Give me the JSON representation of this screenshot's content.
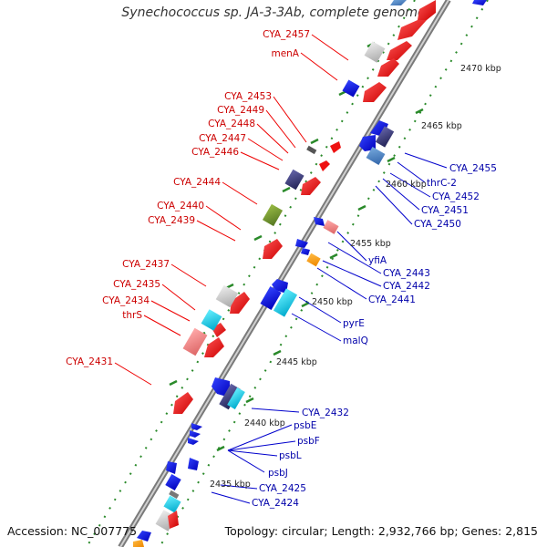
{
  "title": "Synechococcus sp. JA-3-3Ab, complete genome",
  "footer": {
    "accession": "Accession: NC_007775",
    "summary": "Topology: circular; Length: 2,932,766 bp; Genes: 2,815"
  },
  "ticks": [
    {
      "label": "2470 kbp"
    },
    {
      "label": "2465 kbp"
    },
    {
      "label": "2460 kbp"
    },
    {
      "label": "2455 kbp"
    },
    {
      "label": "2450 kbp"
    },
    {
      "label": "2445 kbp"
    },
    {
      "label": "2440 kbp"
    },
    {
      "label": "2435 kbp"
    }
  ],
  "genes_forward": [
    {
      "name": "CYA_2457"
    },
    {
      "name": "menA"
    },
    {
      "name": "CYA_2453"
    },
    {
      "name": "CYA_2449"
    },
    {
      "name": "CYA_2448"
    },
    {
      "name": "CYA_2447"
    },
    {
      "name": "CYA_2446"
    },
    {
      "name": "CYA_2444"
    },
    {
      "name": "CYA_2440"
    },
    {
      "name": "CYA_2439"
    },
    {
      "name": "CYA_2437"
    },
    {
      "name": "CYA_2435"
    },
    {
      "name": "CYA_2434"
    },
    {
      "name": "thrS"
    },
    {
      "name": "CYA_2431"
    }
  ],
  "genes_reverse": [
    {
      "name": "CYA_2455"
    },
    {
      "name": "thrC-2"
    },
    {
      "name": "CYA_2452"
    },
    {
      "name": "CYA_2451"
    },
    {
      "name": "CYA_2450"
    },
    {
      "name": "yfiA"
    },
    {
      "name": "CYA_2443"
    },
    {
      "name": "CYA_2442"
    },
    {
      "name": "CYA_2441"
    },
    {
      "name": "pyrE"
    },
    {
      "name": "malQ"
    },
    {
      "name": "CYA_2432"
    },
    {
      "name": "psbE"
    },
    {
      "name": "psbF"
    },
    {
      "name": "psbL"
    },
    {
      "name": "psbJ"
    },
    {
      "name": "CYA_2425"
    },
    {
      "name": "CYA_2424"
    }
  ],
  "colors": {
    "forward_label": "#cc0000",
    "reverse_label": "#0000aa",
    "backbone": "#888888",
    "tick_dots": "#2a8a2a"
  }
}
